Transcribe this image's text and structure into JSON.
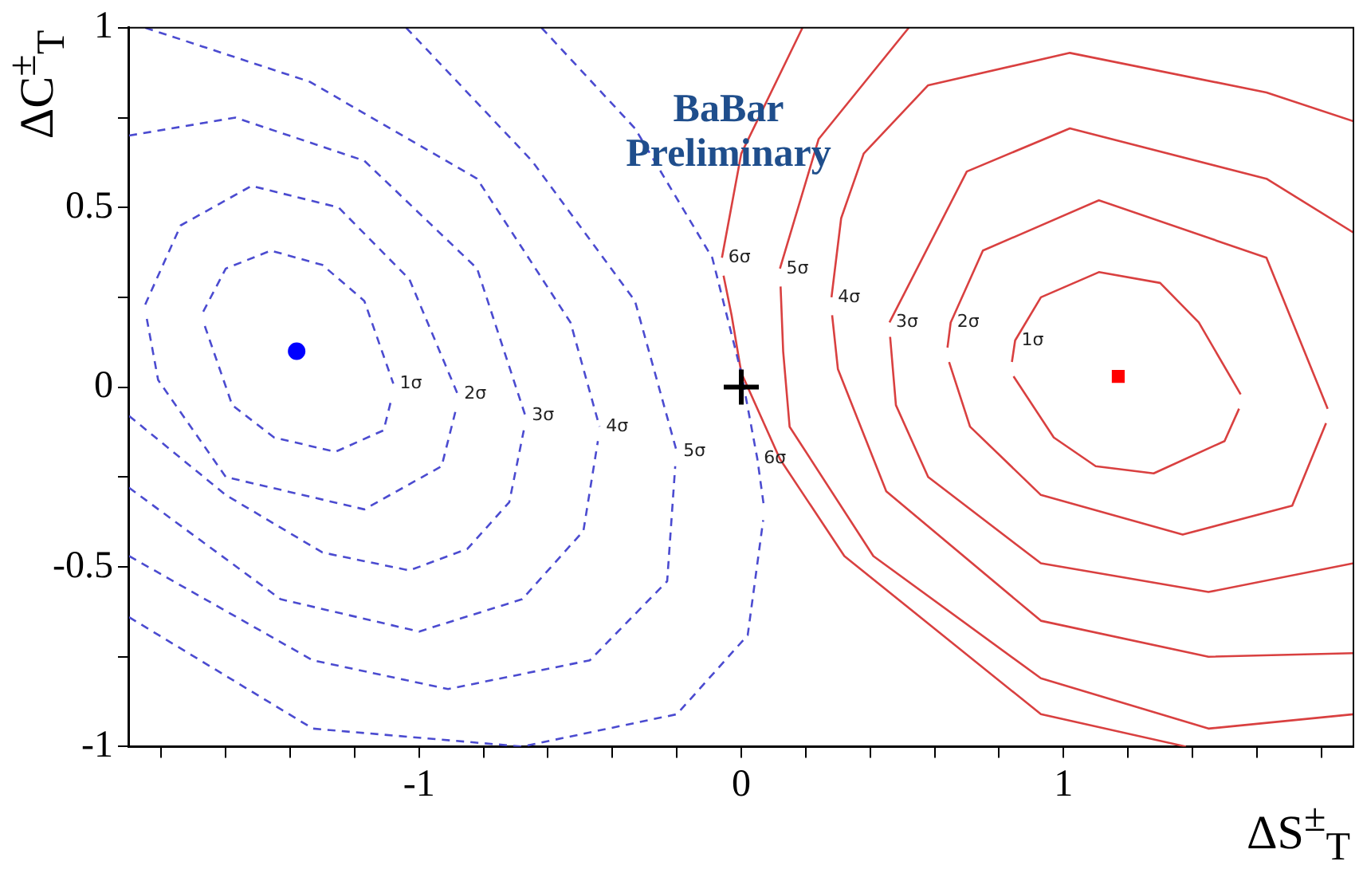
{
  "chart_data": {
    "type": "line",
    "xlabel": "ΔS$^{±}$$_{T}$",
    "ylabel": "ΔC$^{±}$$_{T}$",
    "xlim": [
      -1.9,
      1.9
    ],
    "ylim": [
      -1,
      1
    ],
    "xticks": [
      {
        "value": -1.8,
        "label": null
      },
      {
        "value": -1.6,
        "label": null
      },
      {
        "value": -1.4,
        "label": null
      },
      {
        "value": -1.2,
        "label": null
      },
      -1,
      {
        "value": -0.8,
        "label": null
      },
      {
        "value": -0.6,
        "label": null
      },
      {
        "value": -0.4,
        "label": null
      },
      {
        "value": -0.2,
        "label": null
      },
      0,
      {
        "value": 0.2,
        "label": null
      },
      {
        "value": 0.4,
        "label": null
      },
      {
        "value": 0.6,
        "label": null
      },
      {
        "value": 0.8,
        "label": null
      },
      1,
      {
        "value": 1.2,
        "label": null
      },
      {
        "value": 1.4,
        "label": null
      },
      {
        "value": 1.6,
        "label": null
      },
      {
        "value": 1.8,
        "label": null
      }
    ],
    "yticks": [
      -1,
      {
        "value": -0.75,
        "label": null
      },
      -0.5,
      {
        "value": -0.25,
        "label": null
      },
      0,
      {
        "value": 0.25,
        "label": null
      },
      0.5,
      {
        "value": 0.75,
        "label": null
      },
      1
    ],
    "series": [
      {
        "type": "line",
        "line_style": "dashed",
        "color": "#4b4bd0",
        "x": [
          -1.67,
          -1.6,
          -1.46,
          -1.3,
          -1.17,
          -1.08
        ],
        "values": [
          0.21,
          0.33,
          0.38,
          0.34,
          0.24,
          0.01
        ]
      },
      {
        "type": "line",
        "line_style": "dashed",
        "color": "#4b4bd0",
        "x": [
          -1.665,
          -1.58,
          -1.45,
          -1.26,
          -1.11,
          -1.085
        ],
        "values": [
          0.17,
          -0.05,
          -0.14,
          -0.18,
          -0.12,
          -0.03
        ]
      },
      {
        "type": "line",
        "line_style": "dashed",
        "color": "#4b4bd0",
        "x": [
          -1.85,
          -1.74,
          -1.52,
          -1.25,
          -1.03,
          -0.88
        ],
        "values": [
          0.23,
          0.45,
          0.56,
          0.5,
          0.3,
          -0.02
        ]
      },
      {
        "type": "line",
        "line_style": "dashed",
        "color": "#4b4bd0",
        "x": [
          -1.845,
          -1.81,
          -1.6,
          -1.17,
          -0.93,
          -0.885
        ],
        "values": [
          0.19,
          0.02,
          -0.25,
          -0.34,
          -0.22,
          -0.06
        ]
      },
      {
        "type": "line",
        "line_style": "dashed",
        "color": "#4b4bd0",
        "x": [
          -1.9,
          -1.57,
          -1.17,
          -0.82,
          -0.67
        ],
        "values": [
          0.7,
          0.75,
          0.63,
          0.33,
          -0.08
        ]
      },
      {
        "type": "line",
        "line_style": "dashed",
        "color": "#4b4bd0",
        "x": [
          -1.9,
          -1.6,
          -1.3,
          -1.03,
          -0.85,
          -0.72,
          -0.675
        ],
        "values": [
          -0.08,
          -0.3,
          -0.46,
          -0.51,
          -0.45,
          -0.32,
          -0.12
        ]
      },
      {
        "type": "line",
        "line_style": "dashed",
        "color": "#4b4bd0",
        "x": [
          -1.85,
          -1.34,
          -0.82,
          -0.53,
          -0.44
        ],
        "values": [
          1.0,
          0.85,
          0.58,
          0.18,
          -0.11
        ]
      },
      {
        "type": "line",
        "line_style": "dashed",
        "color": "#4b4bd0",
        "x": [
          -1.9,
          -1.43,
          -1.0,
          -0.68,
          -0.49,
          -0.445
        ],
        "values": [
          -0.28,
          -0.59,
          -0.68,
          -0.59,
          -0.4,
          -0.15
        ]
      },
      {
        "type": "line",
        "line_style": "dashed",
        "color": "#4b4bd0",
        "x": [
          -1.04,
          -0.65,
          -0.33,
          -0.2
        ],
        "values": [
          1.0,
          0.63,
          0.24,
          -0.18
        ]
      },
      {
        "type": "line",
        "line_style": "dashed",
        "color": "#4b4bd0",
        "x": [
          -1.9,
          -1.33,
          -0.91,
          -0.47,
          -0.23,
          -0.205
        ],
        "values": [
          -0.47,
          -0.76,
          -0.84,
          -0.76,
          -0.54,
          -0.22
        ]
      },
      {
        "type": "line",
        "line_style": "dashed",
        "color": "#4b4bd0",
        "x": [
          -0.62,
          -0.33,
          -0.09,
          0.0,
          0.05,
          0.07
        ],
        "values": [
          1.0,
          0.72,
          0.36,
          0.04,
          -0.2,
          -0.33
        ]
      },
      {
        "type": "line",
        "line_style": "dashed",
        "color": "#4b4bd0",
        "x": [
          -1.9,
          -1.33,
          -0.68,
          -0.2,
          0.02,
          0.068
        ],
        "values": [
          -0.64,
          -0.95,
          -1.0,
          -0.91,
          -0.69,
          -0.37
        ]
      },
      {
        "type": "line",
        "line_style": "solid",
        "color": "#d94040",
        "x": [
          0.84,
          0.85,
          0.93,
          1.11,
          1.3,
          1.42,
          1.55
        ],
        "values": [
          0.07,
          0.13,
          0.25,
          0.32,
          0.29,
          0.18,
          -0.02
        ]
      },
      {
        "type": "line",
        "line_style": "solid",
        "color": "#d94040",
        "x": [
          0.845,
          0.97,
          1.1,
          1.28,
          1.5,
          1.545
        ],
        "values": [
          0.03,
          -0.14,
          -0.22,
          -0.24,
          -0.15,
          -0.06
        ]
      },
      {
        "type": "line",
        "line_style": "solid",
        "color": "#d94040",
        "x": [
          0.64,
          0.65,
          0.75,
          1.11,
          1.63,
          1.82
        ],
        "values": [
          0.11,
          0.18,
          0.38,
          0.52,
          0.36,
          -0.06
        ]
      },
      {
        "type": "line",
        "line_style": "solid",
        "color": "#d94040",
        "x": [
          0.645,
          0.71,
          0.93,
          1.37,
          1.71,
          1.815
        ],
        "values": [
          0.07,
          -0.11,
          -0.3,
          -0.41,
          -0.33,
          -0.1
        ]
      },
      {
        "type": "line",
        "line_style": "solid",
        "color": "#d94040",
        "x": [
          0.46,
          0.7,
          1.02,
          1.63,
          1.9
        ],
        "values": [
          0.18,
          0.6,
          0.72,
          0.58,
          0.43
        ]
      },
      {
        "type": "line",
        "line_style": "solid",
        "color": "#d94040",
        "x": [
          0.462,
          0.48,
          0.58,
          0.93,
          1.45,
          1.9
        ],
        "values": [
          0.14,
          -0.05,
          -0.25,
          -0.49,
          -0.57,
          -0.49
        ]
      },
      {
        "type": "line",
        "line_style": "solid",
        "color": "#d94040",
        "x": [
          0.28,
          0.31,
          0.38,
          0.58,
          1.02,
          1.63,
          1.9
        ],
        "values": [
          0.25,
          0.47,
          0.65,
          0.84,
          0.93,
          0.82,
          0.74
        ]
      },
      {
        "type": "line",
        "line_style": "solid",
        "color": "#d94040",
        "x": [
          0.282,
          0.3,
          0.45,
          0.93,
          1.45,
          1.9
        ],
        "values": [
          0.2,
          0.05,
          -0.29,
          -0.65,
          -0.75,
          -0.74
        ]
      },
      {
        "type": "line",
        "line_style": "solid",
        "color": "#d94040",
        "x": [
          0.12,
          0.24,
          0.52
        ],
        "values": [
          0.33,
          0.69,
          1.0
        ]
      },
      {
        "type": "line",
        "line_style": "solid",
        "color": "#d94040",
        "x": [
          0.122,
          0.13,
          0.15,
          0.41,
          0.93,
          1.45,
          1.9
        ],
        "values": [
          0.28,
          0.1,
          -0.11,
          -0.47,
          -0.81,
          -0.95,
          -0.91
        ]
      },
      {
        "type": "line",
        "line_style": "solid",
        "color": "#d94040",
        "x": [
          -0.06,
          0.0,
          0.19
        ],
        "values": [
          0.36,
          0.65,
          1.0
        ]
      },
      {
        "type": "line",
        "line_style": "solid",
        "color": "#d94040",
        "x": [
          -0.055,
          -0.03,
          0.0,
          0.12,
          0.32,
          0.93,
          1.38
        ],
        "values": [
          0.31,
          0.2,
          0.04,
          -0.2,
          -0.47,
          -0.91,
          -1.0
        ]
      },
      {
        "type": "scatter",
        "marker": "circle",
        "color": "#0000ff",
        "x": [
          -1.38
        ],
        "values": [
          0.1
        ]
      },
      {
        "type": "scatter",
        "marker": "square",
        "color": "#ff0000",
        "x": [
          1.17
        ],
        "values": [
          0.03
        ]
      },
      {
        "type": "scatter",
        "marker": "cross",
        "color": "#000000",
        "x": [
          0
        ],
        "values": [
          0
        ]
      }
    ],
    "annotations": [
      "BaBar Preliminary",
      {
        "text": "1σ",
        "x": -1.08,
        "y": 0.01
      },
      {
        "text": "2σ",
        "x": -0.88,
        "y": -0.02
      },
      {
        "text": "3σ",
        "x": -0.67,
        "y": -0.08
      },
      {
        "text": "4σ",
        "x": -0.44,
        "y": -0.11
      },
      {
        "text": "5σ",
        "x": -0.2,
        "y": -0.18
      },
      {
        "text": "6σ",
        "x": 0.05,
        "y": -0.2
      },
      {
        "text": "6σ",
        "x": -0.06,
        "y": 0.36
      },
      {
        "text": "5σ",
        "x": 0.12,
        "y": 0.33
      },
      {
        "text": "4σ",
        "x": 0.28,
        "y": 0.25
      },
      {
        "text": "3σ",
        "x": 0.46,
        "y": 0.18
      },
      {
        "text": "2σ",
        "x": 0.65,
        "y": 0.18
      },
      {
        "text": "1σ",
        "x": 0.85,
        "y": 0.13
      }
    ]
  }
}
